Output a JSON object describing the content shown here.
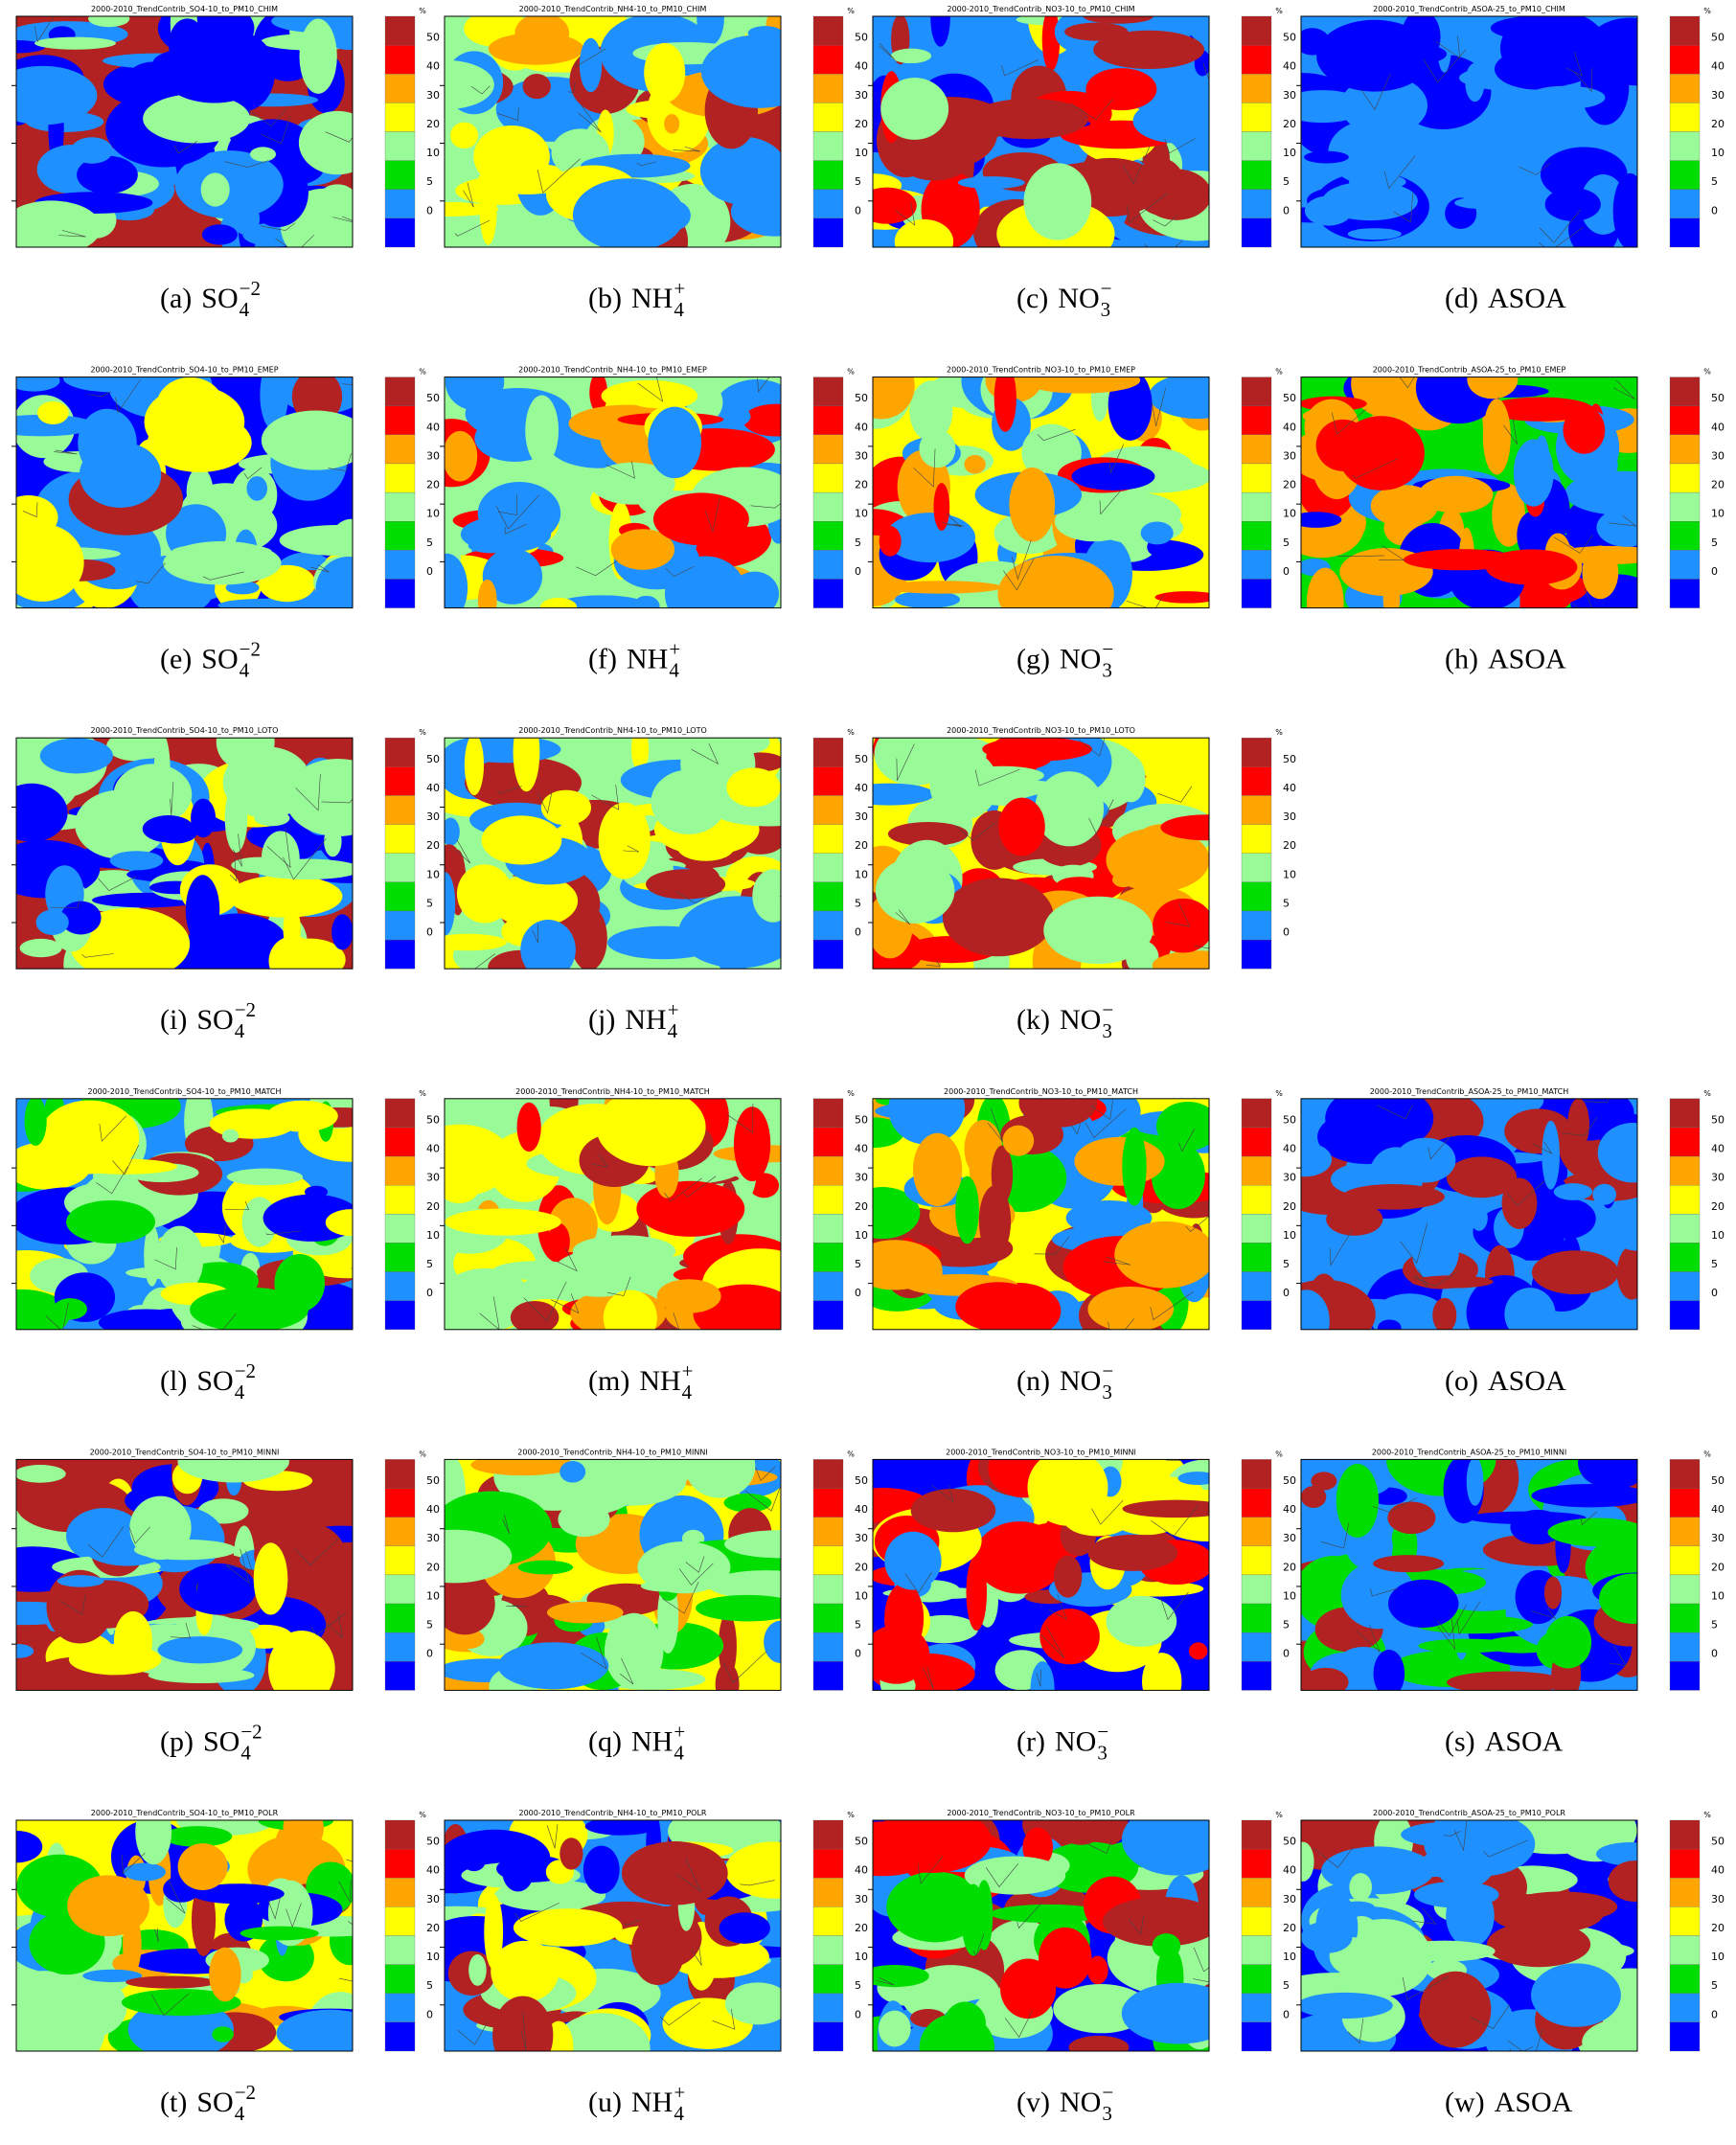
{
  "colorbar": {
    "colors": [
      "#b22222",
      "#ff0000",
      "#ffa500",
      "#ffff00",
      "#98fb98",
      "#00dd00",
      "#1e90ff",
      "#0000ff"
    ],
    "labels": [
      50,
      40,
      30,
      20,
      10,
      5,
      0
    ]
  },
  "panels": [
    {
      "title": "2000-2010_TrendContrib_SO4-10_to_PM10_CHIM",
      "unit": "%",
      "caption": "(a)",
      "species": {
        "base": "SO",
        "sub": "4",
        "sup": "−2"
      }
    },
    {
      "title": "2000-2010_TrendContrib_NH4-10_to_PM10_CHIM",
      "unit": "%",
      "caption": "(b)",
      "species": {
        "base": "NH",
        "sub": "4",
        "sup": "+"
      }
    },
    {
      "title": "2000-2010_TrendContrib_NO3-10_to_PM10_CHIM",
      "unit": "%",
      "caption": "(c)",
      "species": {
        "base": "NO",
        "sub": "3",
        "sup": "−"
      }
    },
    {
      "title": "2000-2010_TrendContrib_ASOA-25_to_PM10_CHIM",
      "unit": "%",
      "caption": "(d)",
      "species": {
        "base": "ASOA"
      }
    },
    {
      "title": "2000-2010_TrendContrib_SO4-10_to_PM10_EMEP",
      "unit": "%",
      "caption": "(e)",
      "species": {
        "base": "SO",
        "sub": "4",
        "sup": "−2"
      }
    },
    {
      "title": "2000-2010_TrendContrib_NH4-10_to_PM10_EMEP",
      "unit": "%",
      "caption": "(f)",
      "species": {
        "base": "NH",
        "sub": "4",
        "sup": "+"
      }
    },
    {
      "title": "2000-2010_TrendContrib_NO3-10_to_PM10_EMEP",
      "unit": "%",
      "caption": "(g)",
      "species": {
        "base": "NO",
        "sub": "3",
        "sup": "−"
      }
    },
    {
      "title": "2000-2010_TrendContrib_ASOA-25_to_PM10_EMEP",
      "unit": "%",
      "caption": "(h)",
      "species": {
        "base": "ASOA"
      }
    },
    {
      "title": "2000-2010_TrendContrib_SO4-10_to_PM10_LOTO",
      "unit": "%",
      "caption": "(i)",
      "species": {
        "base": "SO",
        "sub": "4",
        "sup": "−2"
      }
    },
    {
      "title": "2000-2010_TrendContrib_NH4-10_to_PM10_LOTO",
      "unit": "%",
      "caption": "(j)",
      "species": {
        "base": "NH",
        "sub": "4",
        "sup": "+"
      }
    },
    {
      "title": "2000-2010_TrendContrib_NO3-10_to_PM10_LOTO",
      "unit": "%",
      "caption": "(k)",
      "species": {
        "base": "NO",
        "sub": "3",
        "sup": "−"
      }
    },
    {
      "title": "2000-2010_TrendContrib_SO4-10_to_PM10_MATCH",
      "unit": "%",
      "caption": "(l)",
      "species": {
        "base": "SO",
        "sub": "4",
        "sup": "−2"
      }
    },
    {
      "title": "2000-2010_TrendContrib_NH4-10_to_PM10_MATCH",
      "unit": "%",
      "caption": "(m)",
      "species": {
        "base": "NH",
        "sub": "4",
        "sup": "+"
      }
    },
    {
      "title": "2000-2010_TrendContrib_NO3-10_to_PM10_MATCH",
      "unit": "%",
      "caption": "(n)",
      "species": {
        "base": "NO",
        "sub": "3",
        "sup": "−"
      }
    },
    {
      "title": "2000-2010_TrendContrib_ASOA-25_to_PM10_MATCH",
      "unit": "%",
      "caption": "(o)",
      "species": {
        "base": "ASOA"
      }
    },
    {
      "title": "2000-2010_TrendContrib_SO4-10_to_PM10_MINNI",
      "unit": "%",
      "caption": "(p)",
      "species": {
        "base": "SO",
        "sub": "4",
        "sup": "−2"
      }
    },
    {
      "title": "2000-2010_TrendContrib_NH4-10_to_PM10_MINNI",
      "unit": "%",
      "caption": "(q)",
      "species": {
        "base": "NH",
        "sub": "4",
        "sup": "+"
      }
    },
    {
      "title": "2000-2010_TrendContrib_NO3-10_to_PM10_MINNI",
      "unit": "%",
      "caption": "(r)",
      "species": {
        "base": "NO",
        "sub": "3",
        "sup": "−"
      }
    },
    {
      "title": "2000-2010_TrendContrib_ASOA-25_to_PM10_MINNI",
      "unit": "%",
      "caption": "(s)",
      "species": {
        "base": "ASOA"
      }
    },
    {
      "title": "2000-2010_TrendContrib_SO4-10_to_PM10_POLR",
      "unit": "%",
      "caption": "(t)",
      "species": {
        "base": "SO",
        "sub": "4",
        "sup": "−2"
      }
    },
    {
      "title": "2000-2010_TrendContrib_NH4-10_to_PM10_POLR",
      "unit": "%",
      "caption": "(u)",
      "species": {
        "base": "NH",
        "sub": "4",
        "sup": "+"
      }
    },
    {
      "title": "2000-2010_TrendContrib_NO3-10_to_PM10_POLR",
      "unit": "%",
      "caption": "(v)",
      "species": {
        "base": "NO",
        "sub": "3",
        "sup": "−"
      }
    },
    {
      "title": "2000-2010_TrendContrib_ASOA-25_to_PM10_POLR",
      "unit": "%",
      "caption": "(w)",
      "species": {
        "base": "ASOA"
      }
    }
  ]
}
